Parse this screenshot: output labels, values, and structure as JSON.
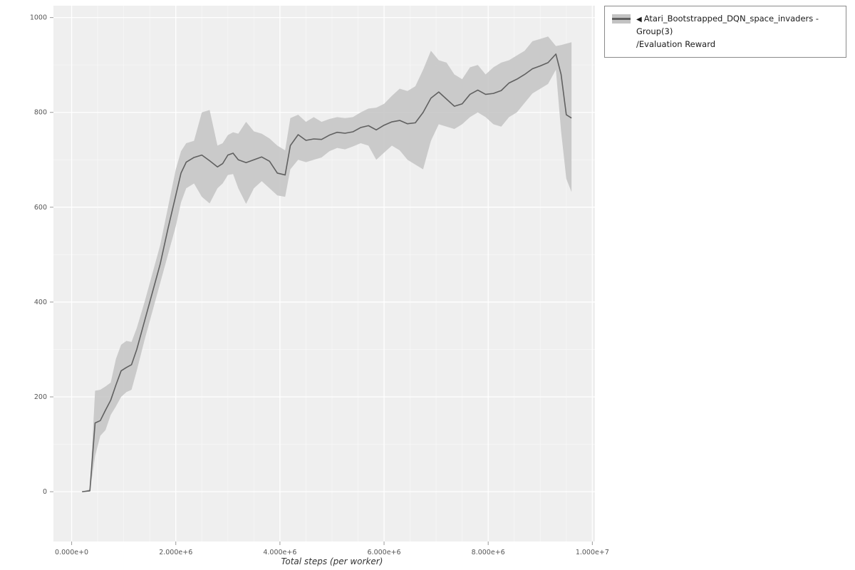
{
  "legend": {
    "collapse_icon": "◀",
    "series_name": "Atari_Bootstrapped_DQN_space_invaders - Group(3)",
    "metric_name": "/Evaluation Reward"
  },
  "chart_data": {
    "type": "line",
    "title": "",
    "xlabel": "Total steps (per worker)",
    "ylabel": "",
    "xlim": [
      -350000,
      10050000
    ],
    "ylim": [
      -105,
      1025
    ],
    "x_tick_values": [
      0,
      2000000,
      4000000,
      6000000,
      8000000,
      10000000
    ],
    "x_tick_labels": [
      "0.000e+0",
      "2.000e+6",
      "4.000e+6",
      "6.000e+6",
      "8.000e+6",
      "1.000e+7"
    ],
    "y_tick_values": [
      0,
      200,
      400,
      600,
      800,
      1000
    ],
    "y_tick_labels": [
      "0",
      "200",
      "400",
      "600",
      "800",
      "1000"
    ],
    "x_minor": [
      500000,
      1000000,
      1500000,
      2500000,
      3000000,
      3500000,
      4500000,
      5000000,
      5500000,
      6500000,
      7000000,
      7500000,
      8500000,
      9000000,
      9500000
    ],
    "y_minor": [
      100,
      300,
      500,
      700,
      900
    ],
    "grid": true,
    "legend_position": "top-right",
    "colors": {
      "band": "#c3c3c3",
      "line": "#606060",
      "plot_bg": "#efefef",
      "grid_major": "#ffffff",
      "grid_minor": "#ffffff",
      "tick_color": "#999999"
    },
    "series": [
      {
        "name": "Atari_Bootstrapped_DQN_space_invaders - Group(3)/Evaluation Reward",
        "x": [
          200000,
          350000,
          450000,
          550000,
          650000,
          750000,
          850000,
          950000,
          1050000,
          1150000,
          1250000,
          1400000,
          1550000,
          1700000,
          1850000,
          2000000,
          2100000,
          2200000,
          2350000,
          2500000,
          2650000,
          2800000,
          2900000,
          3000000,
          3100000,
          3200000,
          3350000,
          3500000,
          3650000,
          3800000,
          3950000,
          4100000,
          4200000,
          4350000,
          4500000,
          4650000,
          4800000,
          4950000,
          5100000,
          5250000,
          5400000,
          5550000,
          5700000,
          5850000,
          6000000,
          6150000,
          6300000,
          6450000,
          6600000,
          6750000,
          6900000,
          7050000,
          7200000,
          7350000,
          7500000,
          7650000,
          7800000,
          7950000,
          8100000,
          8250000,
          8400000,
          8550000,
          8700000,
          8850000,
          9000000,
          9150000,
          9300000,
          9400000,
          9500000,
          9600000
        ],
        "mean": [
          0,
          2,
          145,
          150,
          172,
          193,
          225,
          255,
          262,
          268,
          300,
          360,
          420,
          480,
          555,
          625,
          672,
          695,
          705,
          710,
          698,
          685,
          692,
          710,
          714,
          700,
          694,
          700,
          706,
          697,
          672,
          668,
          730,
          753,
          741,
          744,
          743,
          752,
          758,
          756,
          759,
          768,
          772,
          763,
          773,
          780,
          783,
          776,
          778,
          800,
          830,
          843,
          828,
          813,
          818,
          838,
          847,
          838,
          840,
          846,
          862,
          870,
          880,
          892,
          898,
          905,
          923,
          880,
          795,
          788
        ],
        "lo": [
          0,
          0,
          75,
          118,
          130,
          162,
          180,
          200,
          210,
          215,
          255,
          320,
          380,
          440,
          500,
          560,
          610,
          640,
          650,
          622,
          608,
          640,
          650,
          668,
          670,
          640,
          607,
          640,
          655,
          640,
          625,
          622,
          680,
          700,
          695,
          700,
          705,
          718,
          725,
          722,
          728,
          735,
          730,
          700,
          715,
          730,
          720,
          700,
          690,
          680,
          740,
          775,
          770,
          765,
          775,
          790,
          800,
          790,
          775,
          770,
          790,
          800,
          820,
          840,
          850,
          860,
          890,
          760,
          660,
          632
        ],
        "hi": [
          0,
          5,
          213,
          215,
          222,
          230,
          280,
          310,
          318,
          316,
          345,
          400,
          460,
          520,
          600,
          680,
          718,
          735,
          740,
          800,
          805,
          730,
          735,
          752,
          758,
          755,
          780,
          760,
          755,
          745,
          730,
          720,
          788,
          795,
          780,
          790,
          780,
          786,
          790,
          788,
          790,
          800,
          808,
          810,
          818,
          835,
          850,
          845,
          855,
          890,
          930,
          910,
          905,
          880,
          870,
          895,
          900,
          880,
          895,
          905,
          910,
          920,
          930,
          950,
          955,
          960,
          940,
          942,
          945,
          948
        ]
      }
    ]
  }
}
